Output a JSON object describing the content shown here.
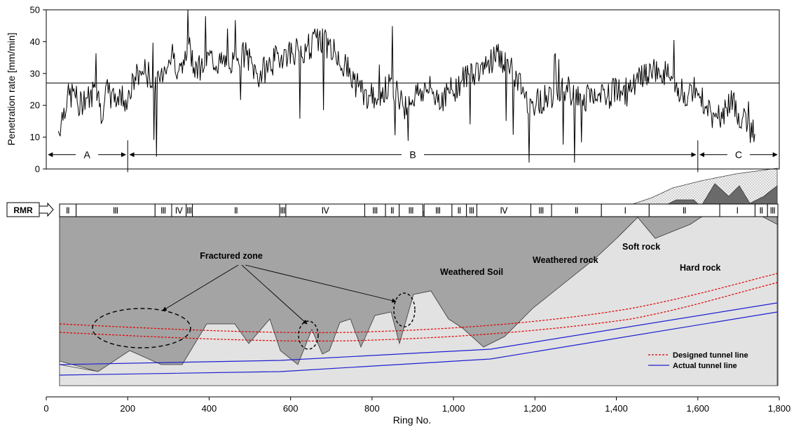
{
  "chart_data": {
    "type": "line",
    "ylabel": "Penetration rate [mm/min]",
    "xlabel": "Ring No.",
    "xlim": [
      0,
      1800
    ],
    "ylim": [
      0,
      50
    ],
    "x_ticks": [
      "0",
      "200",
      "400",
      "600",
      "800",
      "1,000",
      "1,200",
      "1,400",
      "1,600",
      "1,800"
    ],
    "y_ticks": [
      "0",
      "10",
      "20",
      "30",
      "40",
      "50"
    ],
    "reference_line": 27,
    "series": [
      {
        "x": [
          30,
          50,
          70,
          80,
          95,
          110,
          120,
          135,
          150,
          165,
          180,
          200,
          220,
          240,
          260,
          275,
          290,
          310,
          330,
          350,
          365,
          380,
          400,
          430,
          460,
          490,
          520,
          550,
          580,
          610,
          640,
          670,
          700,
          730,
          760,
          790,
          820,
          850,
          880,
          910,
          940,
          970,
          1000,
          1030,
          1060,
          1090,
          1110,
          1125,
          1140,
          1160,
          1190,
          1220,
          1250,
          1280,
          1310,
          1340,
          1370,
          1400,
          1430,
          1460,
          1490,
          1520,
          1550,
          1580,
          1600,
          1620,
          1640,
          1660,
          1680,
          1700,
          1720,
          1740
        ],
        "y": [
          12,
          22,
          24,
          19,
          23,
          22,
          28,
          18,
          24,
          22,
          23,
          22,
          29,
          31,
          28,
          27,
          32,
          36,
          30,
          38,
          33,
          32,
          35,
          33,
          34,
          36,
          29,
          33,
          36,
          37,
          38,
          41,
          38,
          33,
          27,
          22,
          24,
          26,
          20,
          24,
          25,
          22,
          25,
          29,
          31,
          34,
          36,
          33,
          31,
          27,
          20,
          22,
          24,
          25,
          21,
          23,
          22,
          25,
          24,
          28,
          31,
          30,
          25,
          23,
          26,
          19,
          16,
          17,
          21,
          18,
          13,
          11
        ]
      }
    ],
    "segments": [
      {
        "label": "A",
        "start": 0,
        "end": 200
      },
      {
        "label": "B",
        "start": 200,
        "end": 1600
      },
      {
        "label": "C",
        "start": 1600,
        "end": 1800
      }
    ],
    "rmr_label": "RMR",
    "rmr_classes": [
      {
        "label": "Ⅱ",
        "start": 30,
        "end": 70
      },
      {
        "label": "Ⅲ",
        "start": 70,
        "end": 260
      },
      {
        "label": "Ⅲ",
        "start": 260,
        "end": 300
      },
      {
        "label": "Ⅳ",
        "start": 300,
        "end": 335
      },
      {
        "label": "Ⅲ",
        "start": 335,
        "end": 350
      },
      {
        "label": "Ⅱ",
        "start": 350,
        "end": 560
      },
      {
        "label": "Ⅲ",
        "start": 560,
        "end": 575
      },
      {
        "label": "Ⅳ",
        "start": 575,
        "end": 765
      },
      {
        "label": "Ⅲ",
        "start": 765,
        "end": 815
      },
      {
        "label": "Ⅱ",
        "start": 815,
        "end": 848
      },
      {
        "label": "Ⅲ",
        "start": 848,
        "end": 905
      },
      {
        "label": "Ⅲ",
        "start": 908,
        "end": 975
      },
      {
        "label": "Ⅱ",
        "start": 975,
        "end": 1010
      },
      {
        "label": "Ⅲ",
        "start": 1010,
        "end": 1035
      },
      {
        "label": "Ⅳ",
        "start": 1035,
        "end": 1165
      },
      {
        "label": "Ⅲ",
        "start": 1165,
        "end": 1215
      },
      {
        "label": "Ⅱ",
        "start": 1215,
        "end": 1335
      },
      {
        "label": "Ⅰ",
        "start": 1335,
        "end": 1450
      },
      {
        "label": "Ⅱ",
        "start": 1450,
        "end": 1620
      },
      {
        "label": "Ⅰ",
        "start": 1620,
        "end": 1705
      },
      {
        "label": "Ⅱ",
        "start": 1705,
        "end": 1735
      },
      {
        "label": "Ⅲ",
        "start": 1735,
        "end": 1760
      }
    ],
    "annotations": {
      "fractured_zone": "Fractured zone",
      "weathered_soil": "Weathered Soil",
      "weathered_rock": "Weathered rock",
      "soft_rock": "Soft rock",
      "hard_rock": "Hard rock"
    },
    "legend": [
      {
        "name": "Designed tunnel line",
        "color": "#e00000",
        "dash": true
      },
      {
        "name": "Actual tunnel line",
        "color": "#1f1fd0",
        "dash": false
      }
    ]
  }
}
